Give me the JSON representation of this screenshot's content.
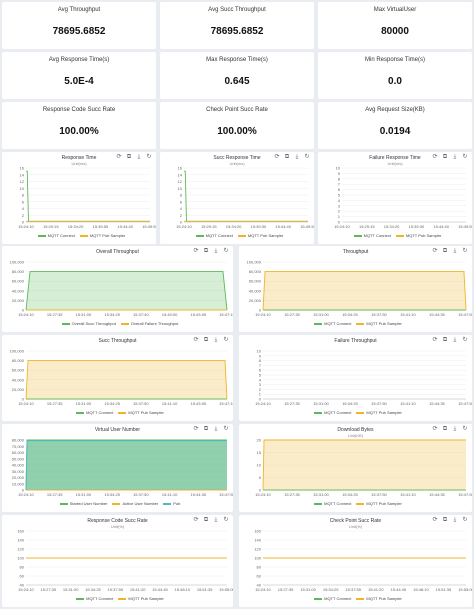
{
  "stats": [
    {
      "label": "Avg Throughput",
      "value": "78695.6852"
    },
    {
      "label": "Avg Succ Throughput",
      "value": "78695.6852"
    },
    {
      "label": "Max VirtualUser",
      "value": "80000"
    },
    {
      "label": "Avg Response Time(s)",
      "value": "5.0E-4"
    },
    {
      "label": "Max Response Time(s)",
      "value": "0.645"
    },
    {
      "label": "Min Response Time(s)",
      "value": "0.0"
    },
    {
      "label": "Response Code Succ Rate",
      "value": "100.00%"
    },
    {
      "label": "Check Point Succ Rate",
      "value": "100.00%"
    },
    {
      "label": "Avg Request Size(KB)",
      "value": "0.0194"
    }
  ],
  "colors": {
    "green": "#5cb85c",
    "orange": "#f0b429",
    "teal": "#4fb8c4"
  },
  "chart_data": [
    {
      "type": "line",
      "title": "Response Time",
      "unit": "Unit(ms)",
      "xticks": [
        "15:24:10",
        "15:29:15",
        "15:34:20",
        "15:35:55",
        "15:44:40",
        "15:49:55"
      ],
      "yticks": [
        "0",
        "2",
        "4",
        "6",
        "8",
        "10",
        "12",
        "14",
        "16"
      ],
      "ylim": [
        0,
        17
      ],
      "series": [
        {
          "name": "MQTT Connect",
          "color": "#5cb85c",
          "x": [
            0,
            0.01,
            0.02,
            1
          ],
          "y": [
            16,
            16,
            0.2,
            0.2
          ]
        },
        {
          "name": "MQTT Pub Sampler",
          "color": "#f0b429",
          "x": [
            0,
            1
          ],
          "y": [
            0.2,
            0.2
          ]
        }
      ]
    },
    {
      "type": "line",
      "title": "Succ Response Time",
      "unit": "Unit(ms)",
      "xticks": [
        "15:24:10",
        "15:29:15",
        "15:34:20",
        "15:39:30",
        "15:44:40",
        "15:49:55"
      ],
      "yticks": [
        "0",
        "2",
        "4",
        "6",
        "8",
        "10",
        "12",
        "14",
        "16"
      ],
      "ylim": [
        0,
        17
      ],
      "series": [
        {
          "name": "MQTT Connect",
          "color": "#5cb85c",
          "x": [
            0,
            0.01,
            0.02,
            1
          ],
          "y": [
            16,
            16,
            0.2,
            0.2
          ]
        },
        {
          "name": "MQTT Pub Sampler",
          "color": "#f0b429",
          "x": [
            0,
            1
          ],
          "y": [
            0.2,
            0.2
          ]
        }
      ]
    },
    {
      "type": "line",
      "title": "Failure Response Time",
      "unit": "Unit(ms)",
      "xticks": [
        "15:24:10",
        "15:29:15",
        "15:34:20",
        "15:39:30",
        "15:44:40",
        "15:49:55"
      ],
      "yticks": [
        "0",
        "1",
        "2",
        "3",
        "4",
        "5",
        "6",
        "7",
        "8",
        "9",
        "10"
      ],
      "ylim": [
        0,
        10
      ],
      "series": [
        {
          "name": "MQTT Connect",
          "color": "#5cb85c",
          "x": [],
          "y": []
        },
        {
          "name": "MQTT Pub Sampler",
          "color": "#f0b429",
          "x": [],
          "y": []
        }
      ]
    },
    {
      "type": "area",
      "title": "Overall Throughput",
      "unit": "",
      "xticks": [
        "15:24:10",
        "15:27:35",
        "15:31:00",
        "15:34:25",
        "15:37:40",
        "15:40:00",
        "15:43:55",
        "15:47:15"
      ],
      "yticks": [
        "0",
        "20,000",
        "40,000",
        "60,000",
        "80,000",
        "100,000"
      ],
      "ylim": [
        0,
        100000
      ],
      "series": [
        {
          "name": "Overall Succ Throughput",
          "color": "#5cb85c",
          "x": [
            0,
            0.02,
            0.98,
            1
          ],
          "y": [
            0,
            80000,
            80000,
            0
          ]
        },
        {
          "name": "Overall Failure Throughput",
          "color": "#f0b429",
          "x": [
            0,
            1
          ],
          "y": [
            0,
            0
          ]
        }
      ]
    },
    {
      "type": "area",
      "title": "Throughput",
      "unit": "",
      "xticks": [
        "15:24:10",
        "15:27:35",
        "15:31:00",
        "15:34:25",
        "15:37:50",
        "15:41:10",
        "15:44:35",
        "15:47:55"
      ],
      "yticks": [
        "0",
        "20,000",
        "40,000",
        "60,000",
        "80,000",
        "100,000"
      ],
      "ylim": [
        0,
        100000
      ],
      "series": [
        {
          "name": "MQTT Connect",
          "color": "#5cb85c",
          "x": [
            0,
            1
          ],
          "y": [
            0,
            0
          ]
        },
        {
          "name": "MQTT Pub Sampler",
          "color": "#f0b429",
          "x": [
            0,
            0.01,
            0.99,
            1
          ],
          "y": [
            0,
            80000,
            80000,
            0
          ]
        }
      ]
    },
    {
      "type": "area",
      "title": "Succ Throughput",
      "unit": "",
      "xticks": [
        "15:24:10",
        "15:27:35",
        "15:31:00",
        "15:34:25",
        "15:37:50",
        "15:41:10",
        "15:43:55",
        "15:47:15"
      ],
      "yticks": [
        "0",
        "20,000",
        "40,000",
        "60,000",
        "80,000",
        "100,000"
      ],
      "ylim": [
        0,
        100000
      ],
      "series": [
        {
          "name": "MQTT Connect",
          "color": "#5cb85c",
          "x": [
            0,
            1
          ],
          "y": [
            0,
            0
          ]
        },
        {
          "name": "MQTT Pub Sampler",
          "color": "#f0b429",
          "x": [
            0,
            0.01,
            0.99,
            1
          ],
          "y": [
            0,
            80000,
            80000,
            0
          ]
        }
      ]
    },
    {
      "type": "line",
      "title": "Failure Throughput",
      "unit": "",
      "xticks": [
        "15:24:10",
        "15:27:35",
        "15:31:00",
        "15:34:25",
        "15:37:50",
        "15:41:10",
        "15:44:35",
        "15:47:55"
      ],
      "yticks": [
        "0",
        "1",
        "2",
        "3",
        "4",
        "5",
        "6",
        "7",
        "8",
        "9",
        "10"
      ],
      "ylim": [
        0,
        10
      ],
      "series": [
        {
          "name": "MQTT Connect",
          "color": "#5cb85c",
          "x": [],
          "y": []
        },
        {
          "name": "MQTT Pub Sampler",
          "color": "#f0b429",
          "x": [],
          "y": []
        }
      ]
    },
    {
      "type": "area",
      "title": "Virtual User Number",
      "unit": "",
      "xticks": [
        "15:24:10",
        "15:27:35",
        "15:31:00",
        "15:34:25",
        "15:37:50",
        "15:41:10",
        "15:44:35",
        "15:47:55"
      ],
      "yticks": [
        "0",
        "10,000",
        "20,000",
        "30,000",
        "40,000",
        "50,000",
        "60,000",
        "70,000",
        "80,000"
      ],
      "ylim": [
        0,
        80000
      ],
      "series": [
        {
          "name": "Started User Number",
          "color": "#5cb85c",
          "x": [
            0,
            0.005,
            1
          ],
          "y": [
            0,
            80000,
            80000
          ]
        },
        {
          "name": "Active User Number",
          "color": "#f0b429",
          "x": [
            0,
            1
          ],
          "y": [
            0,
            0
          ]
        },
        {
          "name": "Pub",
          "color": "#4fb8c4",
          "x": [
            0,
            0.005,
            1
          ],
          "y": [
            0,
            79000,
            79000
          ]
        }
      ]
    },
    {
      "type": "area",
      "title": "Download Bytes",
      "unit": "Unit(KB)",
      "xticks": [
        "15:24:10",
        "15:27:35",
        "15:31:00",
        "15:34:25",
        "15:37:50",
        "15:41:10",
        "15:44:35",
        "15:47:55"
      ],
      "yticks": [
        "0",
        "5",
        "10",
        "15",
        "20"
      ],
      "ylim": [
        0,
        20
      ],
      "series": [
        {
          "name": "MQTT Connect",
          "color": "#5cb85c",
          "x": [
            0,
            1
          ],
          "y": [
            0,
            0
          ]
        },
        {
          "name": "MQTT Pub Sampler",
          "color": "#f0b429",
          "x": [
            0,
            0.005,
            1
          ],
          "y": [
            0,
            20,
            20
          ]
        }
      ]
    },
    {
      "type": "line",
      "title": "Response Code Succ Rate",
      "unit": "Unit(%)",
      "xticks": [
        "15:24:10",
        "15:27:35",
        "15:31:00",
        "15:34:25",
        "15:37:55",
        "15:41:20",
        "15:44:45",
        "15:48:10",
        "15:51:35",
        "15:55:00"
      ],
      "yticks": [
        "40",
        "60",
        "80",
        "100",
        "120",
        "140",
        "160"
      ],
      "ylim": [
        40,
        160
      ],
      "series": [
        {
          "name": "MQTT Connect",
          "color": "#5cb85c",
          "x": [
            0,
            1
          ],
          "y": [
            100,
            100
          ]
        },
        {
          "name": "MQTT Pub Sampler",
          "color": "#f0b429",
          "x": [
            0,
            1
          ],
          "y": [
            100,
            100
          ]
        }
      ]
    },
    {
      "type": "line",
      "title": "Check Point Succ Rate",
      "unit": "Unit(%)",
      "xticks": [
        "15:24:10",
        "15:27:35",
        "15:31:00",
        "15:34:25",
        "15:37:55",
        "15:41:20",
        "15:44:45",
        "15:48:10",
        "15:51:35",
        "15:55:00"
      ],
      "yticks": [
        "40",
        "60",
        "80",
        "100",
        "120",
        "140",
        "160"
      ],
      "ylim": [
        40,
        160
      ],
      "series": [
        {
          "name": "MQTT Connect",
          "color": "#5cb85c",
          "x": [
            0,
            1
          ],
          "y": [
            100,
            100
          ]
        },
        {
          "name": "MQTT Pub Sampler",
          "color": "#f0b429",
          "x": [
            0,
            1
          ],
          "y": [
            100,
            100
          ]
        }
      ]
    }
  ]
}
